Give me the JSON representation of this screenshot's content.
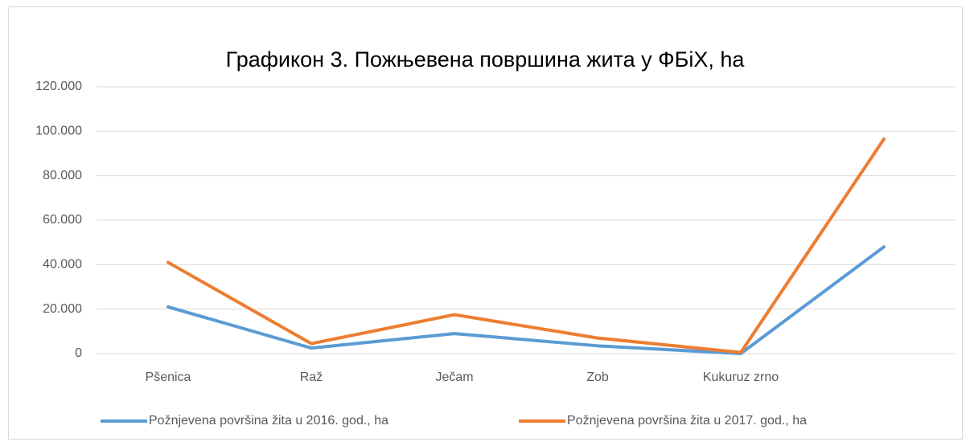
{
  "chart_data": {
    "type": "line",
    "title": "Графикон 3. Пожњевена површина жита у ФБіХ, ha",
    "categories": [
      "Pšenica",
      "Raž",
      "Ječam",
      "Zob",
      "Kukuruz zrno",
      null
    ],
    "series": [
      {
        "name": "Požnjevena površina žita u 2016. god., ha",
        "color": "#5b9bd5",
        "values": [
          21000,
          2500,
          9000,
          3500,
          0,
          48000
        ]
      },
      {
        "name": "Požnjevena površina žita u 2017. god., ha",
        "color": "#ed7d31",
        "values": [
          41000,
          4500,
          17500,
          7000,
          500,
          96500
        ]
      }
    ],
    "ylim": [
      0,
      120000
    ],
    "yticks": [
      0,
      {
        "value": 20000,
        "label": "20.000"
      },
      {
        "value": 40000,
        "label": "40.000"
      },
      {
        "value": 60000,
        "label": "60.000"
      },
      {
        "value": 80000,
        "label": "80.000"
      },
      {
        "value": 100000,
        "label": "100.000"
      },
      {
        "value": 120000,
        "label": "120.000"
      }
    ],
    "grid": true,
    "legend": "bottom"
  }
}
